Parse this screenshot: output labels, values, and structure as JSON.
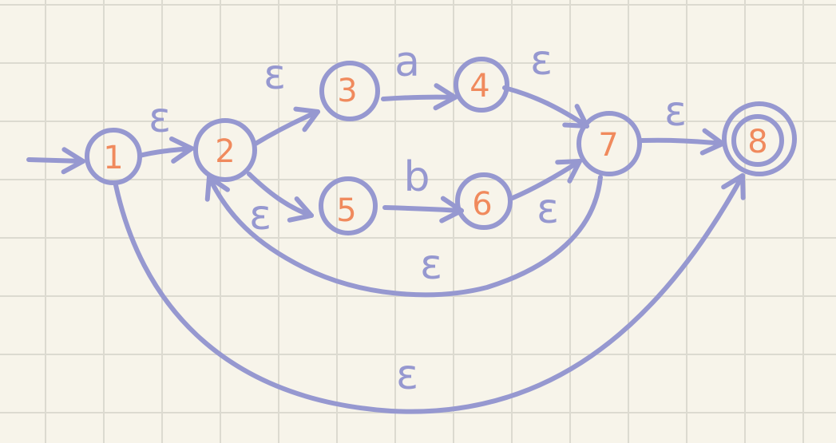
{
  "diagram": {
    "states": [
      {
        "id": "1",
        "label": "1",
        "accepting": false
      },
      {
        "id": "2",
        "label": "2",
        "accepting": false
      },
      {
        "id": "3",
        "label": "3",
        "accepting": false
      },
      {
        "id": "4",
        "label": "4",
        "accepting": false
      },
      {
        "id": "5",
        "label": "5",
        "accepting": false
      },
      {
        "id": "6",
        "label": "6",
        "accepting": false
      },
      {
        "id": "7",
        "label": "7",
        "accepting": false
      },
      {
        "id": "8",
        "label": "8",
        "accepting": true
      }
    ],
    "start_state": "1",
    "transitions": [
      {
        "from": "1",
        "to": "2",
        "label": "ε"
      },
      {
        "from": "2",
        "to": "3",
        "label": "ε"
      },
      {
        "from": "3",
        "to": "4",
        "label": "a"
      },
      {
        "from": "4",
        "to": "7",
        "label": "ε"
      },
      {
        "from": "2",
        "to": "5",
        "label": "ε"
      },
      {
        "from": "5",
        "to": "6",
        "label": "b"
      },
      {
        "from": "6",
        "to": "7",
        "label": "ε"
      },
      {
        "from": "7",
        "to": "8",
        "label": "ε"
      },
      {
        "from": "7",
        "to": "2",
        "label": "ε"
      },
      {
        "from": "1",
        "to": "8",
        "label": "ε"
      }
    ],
    "colors": {
      "ink": "#9698d0",
      "state_number": "#f08a5d",
      "paper": "#f7f4ea",
      "grid": "#dcdad0"
    }
  }
}
